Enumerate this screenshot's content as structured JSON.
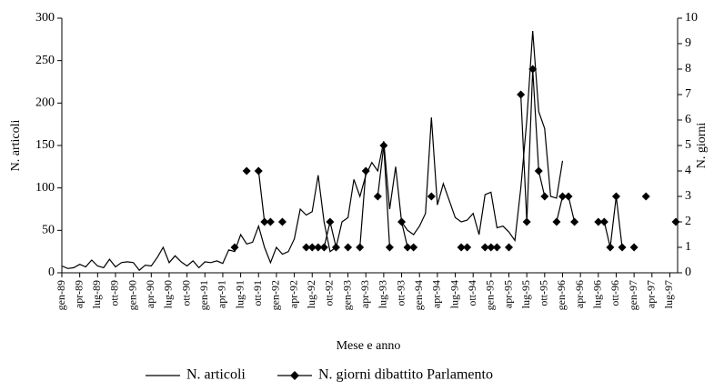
{
  "chart_data": {
    "type": "line",
    "xlabel": "Mese e anno",
    "ylabel": "N. articoli",
    "y2label": "N. giorni",
    "categories": [
      "gen-89",
      null,
      null,
      "apr-89",
      null,
      null,
      "lug-89",
      null,
      null,
      "ott-89",
      null,
      null,
      "gen-90",
      null,
      null,
      "apr-90",
      null,
      null,
      "lug-90",
      null,
      null,
      "ott-90",
      null,
      null,
      "gen-91",
      null,
      null,
      "apr-91",
      null,
      null,
      "lug-91",
      null,
      null,
      "ott-91",
      null,
      null,
      "gen-92",
      null,
      null,
      "apr-92",
      null,
      null,
      "lug-92",
      null,
      null,
      "ott-92",
      null,
      null,
      "gen-93",
      null,
      null,
      "apr-93",
      null,
      null,
      "lug-93",
      null,
      null,
      "ott-93",
      null,
      null,
      "gen-94",
      null,
      null,
      "apr-94",
      null,
      null,
      "lug-94",
      null,
      null,
      "ott-94",
      null,
      null,
      "gen-95",
      null,
      null,
      "apr-95",
      null,
      null,
      "lug-95",
      null,
      null,
      "ott-95",
      null,
      null,
      "gen-96",
      null,
      null,
      "apr-96",
      null,
      null,
      "lug-96",
      null,
      null,
      "ott-96",
      null,
      null,
      "gen-97",
      null,
      null,
      "apr-97",
      null,
      null,
      "lug-97",
      null
    ],
    "series": [
      {
        "name": "N. articoli",
        "color": "#000000",
        "values": [
          8,
          5,
          6,
          10,
          7,
          15,
          8,
          6,
          16,
          7,
          12,
          13,
          12,
          3,
          9,
          8,
          18,
          30,
          12,
          20,
          13,
          8,
          14,
          6,
          13,
          12,
          14,
          11,
          27,
          25,
          45,
          34,
          36,
          55,
          30,
          12,
          30,
          22,
          25,
          40,
          75,
          68,
          72,
          115,
          60,
          25,
          30,
          60,
          65,
          110,
          90,
          115,
          130,
          120,
          155,
          75,
          125,
          60,
          50,
          45,
          55,
          70,
          183,
          80,
          105,
          85,
          65,
          60,
          62,
          70,
          45,
          92,
          95,
          53,
          55,
          48,
          38,
          100,
          180,
          285,
          190,
          170,
          90,
          88,
          132,
          null,
          null,
          null,
          null,
          null,
          null,
          null,
          null,
          null,
          null,
          null,
          null,
          null,
          null,
          null,
          null,
          null,
          null,
          null
        ]
      },
      {
        "name": "N. giorni dibattito Parlamento",
        "color": "#000000",
        "marker": "diamond",
        "axis": "y2",
        "values": [
          null,
          null,
          null,
          null,
          null,
          null,
          null,
          null,
          null,
          null,
          null,
          null,
          null,
          null,
          null,
          null,
          null,
          null,
          null,
          null,
          null,
          null,
          null,
          null,
          null,
          null,
          null,
          null,
          null,
          1,
          null,
          4,
          null,
          4,
          2,
          2,
          null,
          2,
          null,
          null,
          null,
          1,
          1,
          1,
          1,
          2,
          1,
          null,
          1,
          null,
          1,
          4,
          null,
          3,
          5,
          1,
          null,
          2,
          1,
          1,
          null,
          null,
          3,
          null,
          null,
          null,
          null,
          1,
          1,
          null,
          null,
          1,
          1,
          1,
          null,
          1,
          null,
          7,
          2,
          8,
          4,
          3,
          null,
          2,
          3,
          3,
          2,
          null,
          null,
          null,
          2,
          2,
          1,
          3,
          1,
          null,
          1,
          null,
          3,
          null,
          null,
          null,
          null,
          2
        ]
      }
    ],
    "ylim": [
      0,
      300
    ],
    "yticks": [
      0,
      50,
      100,
      150,
      200,
      250,
      300
    ],
    "y2lim": [
      0,
      10
    ],
    "y2ticks": [
      0,
      1,
      2,
      3,
      4,
      5,
      6,
      7,
      8,
      9,
      10
    ]
  }
}
